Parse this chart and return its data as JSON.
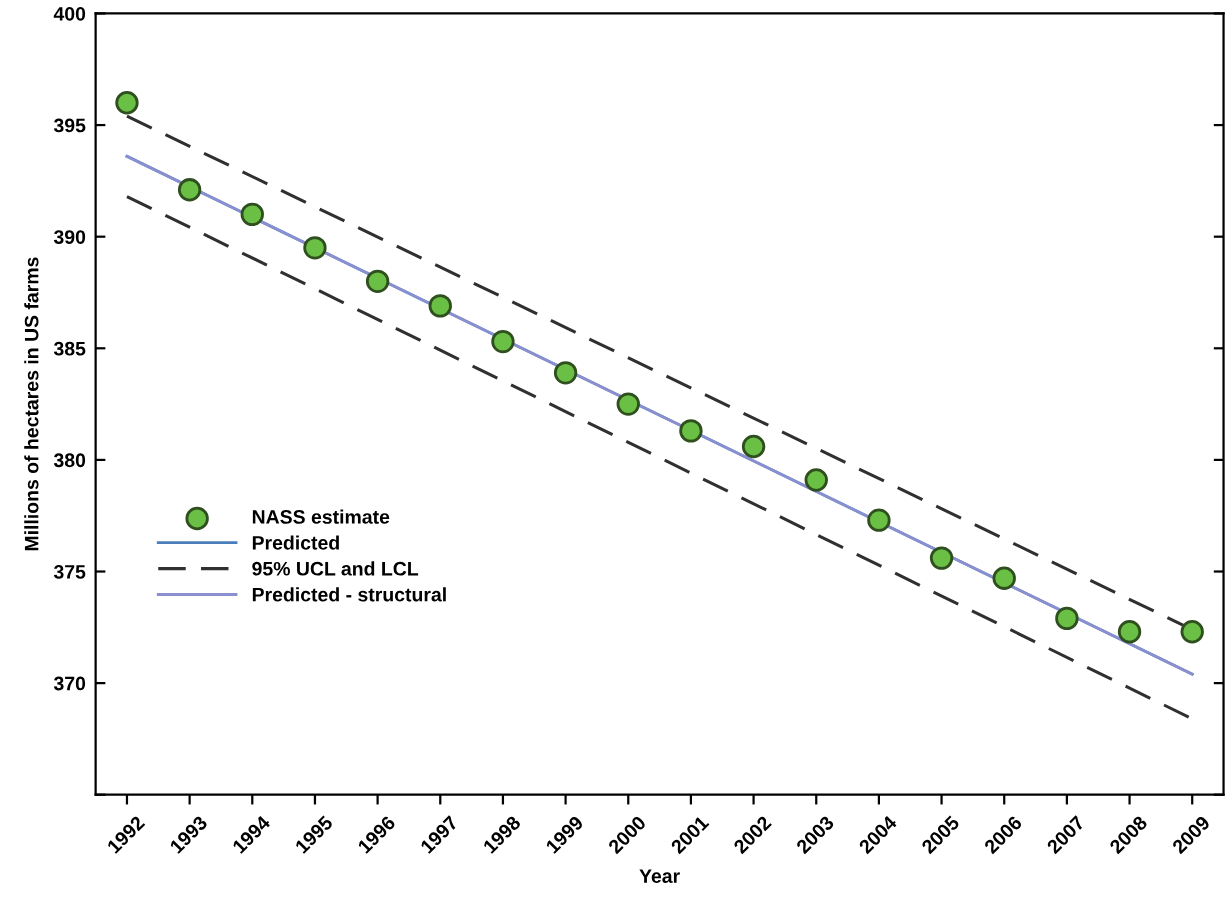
{
  "chart_data": {
    "type": "scatter",
    "xlabel": "Year",
    "ylabel": "Millions of hectares in US farms",
    "xlim": [
      1991.5,
      2009.5
    ],
    "xticks": [
      1992,
      1993,
      1994,
      1995,
      1996,
      1997,
      1998,
      1999,
      2000,
      2001,
      2002,
      2003,
      2004,
      2005,
      2006,
      2007,
      2008,
      2009
    ],
    "ylim": [
      365,
      400
    ],
    "yticks": [
      {
        "value": 365,
        "label": null
      },
      370,
      375,
      380,
      385,
      390,
      395,
      400
    ],
    "grid": false,
    "legend": "bottom left",
    "series": [
      {
        "name": "NASS estimate",
        "marker": "circle",
        "color": "#6abf45",
        "x": [
          1992,
          1993,
          1994,
          1995,
          1996,
          1997,
          1998,
          1999,
          2000,
          2001,
          2002,
          2003,
          2004,
          2005,
          2006,
          2007,
          2008,
          2009
        ],
        "values": [
          396.0,
          392.1,
          391.0,
          389.5,
          388.0,
          386.9,
          385.3,
          383.9,
          382.5,
          381.3,
          380.6,
          379.1,
          377.3,
          375.6,
          374.7,
          372.9,
          372.3,
          372.3
        ]
      },
      {
        "name": "Predicted",
        "type": "line",
        "line_style": "solid",
        "color": "#4a7ebb",
        "x": [
          1992,
          2009
        ],
        "values": [
          393.6,
          370.4
        ]
      },
      {
        "name": "95% UCL and LCL",
        "type": "line",
        "line_style": "dashed",
        "color": "#303030",
        "x": [
          1992,
          2009
        ],
        "values": [
          395.4,
          372.4
        ]
      },
      {
        "type": "line",
        "line_style": "dashed",
        "color": "#303030",
        "x": [
          1992,
          2009
        ],
        "values": [
          391.8,
          368.4
        ]
      },
      {
        "name": "Predicted - structural",
        "type": "line",
        "line_style": "solid",
        "color": "#8a8fd0",
        "x": [
          1992,
          2009
        ],
        "values": [
          393.6,
          370.4
        ]
      }
    ]
  }
}
